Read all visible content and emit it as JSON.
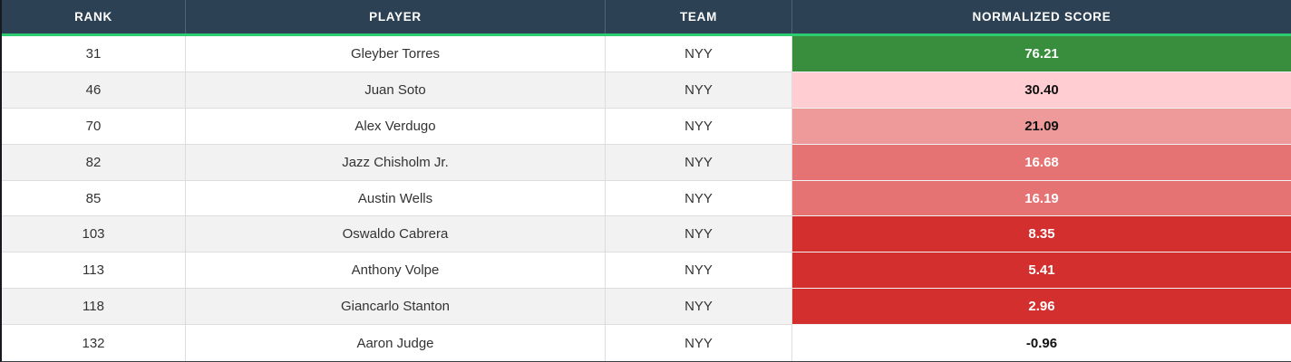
{
  "table": {
    "columns": [
      {
        "key": "rank",
        "label": "RANK"
      },
      {
        "key": "player",
        "label": "PLAYER"
      },
      {
        "key": "team",
        "label": "TEAM"
      },
      {
        "key": "score",
        "label": "NORMALIZED SCORE"
      }
    ],
    "rows": [
      {
        "rank": "31",
        "player": "Gleyber Torres",
        "team": "NYY",
        "score": "76.21",
        "score_bg": "#388e3c",
        "score_color": "#ffffff"
      },
      {
        "rank": "46",
        "player": "Juan Soto",
        "team": "NYY",
        "score": "30.40",
        "score_bg": "#ffcdd2",
        "score_color": "#111111"
      },
      {
        "rank": "70",
        "player": "Alex Verdugo",
        "team": "NYY",
        "score": "21.09",
        "score_bg": "#ef9a9a",
        "score_color": "#111111"
      },
      {
        "rank": "82",
        "player": "Jazz Chisholm Jr.",
        "team": "NYY",
        "score": "16.68",
        "score_bg": "#e57373",
        "score_color": "#ffffff"
      },
      {
        "rank": "85",
        "player": "Austin Wells",
        "team": "NYY",
        "score": "16.19",
        "score_bg": "#e57373",
        "score_color": "#ffffff"
      },
      {
        "rank": "103",
        "player": "Oswaldo Cabrera",
        "team": "NYY",
        "score": "8.35",
        "score_bg": "#d32f2f",
        "score_color": "#ffffff"
      },
      {
        "rank": "113",
        "player": "Anthony Volpe",
        "team": "NYY",
        "score": "5.41",
        "score_bg": "#d32f2f",
        "score_color": "#ffffff"
      },
      {
        "rank": "118",
        "player": "Giancarlo Stanton",
        "team": "NYY",
        "score": "2.96",
        "score_bg": "#d32f2f",
        "score_color": "#ffffff"
      },
      {
        "rank": "132",
        "player": "Aaron Judge",
        "team": "NYY",
        "score": "-0.96",
        "score_bg": "#ffffff",
        "score_color": "#111111"
      }
    ]
  },
  "colors": {
    "header_bg": "#2d4154",
    "header_text": "#ffffff",
    "accent_green_line": "#2ecc71",
    "row_bg": "#ffffff",
    "row_alt_bg": "#f2f2f2",
    "cell_border": "#dddddd",
    "body_text": "#333333"
  }
}
